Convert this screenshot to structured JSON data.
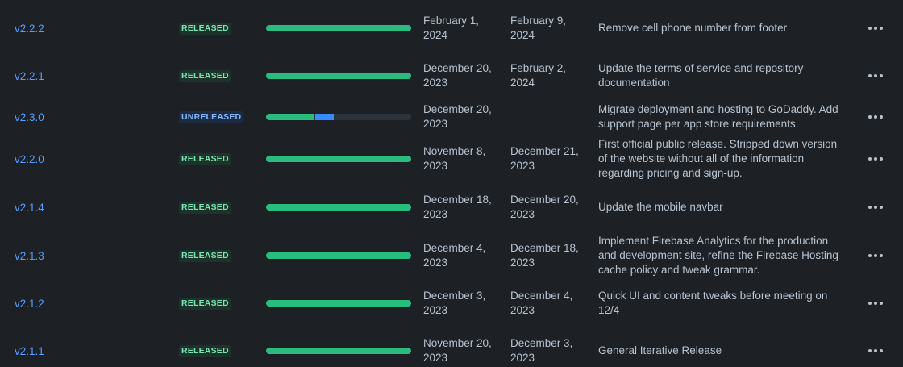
{
  "rows": [
    {
      "version": "v2.2.2",
      "status": "RELEASED",
      "start_date": "February 1, 2024",
      "release_date": "February 9, 2024",
      "description": "Remove cell phone number from footer",
      "progress": {
        "done": 1.0,
        "in_progress": 0.0
      }
    },
    {
      "version": "v2.2.1",
      "status": "RELEASED",
      "start_date": "December 20, 2023",
      "release_date": "February 2, 2024",
      "description": "Update the terms of service and repository documentation",
      "progress": {
        "done": 1.0,
        "in_progress": 0.0
      }
    },
    {
      "version": "v2.3.0",
      "status": "UNRELEASED",
      "start_date": "December 20, 2023",
      "release_date": "",
      "description": "Migrate deployment and hosting to GoDaddy. Add support page per app store requirements.",
      "progress": {
        "done": 0.33,
        "in_progress": 0.13
      }
    },
    {
      "version": "v2.2.0",
      "status": "RELEASED",
      "start_date": "November 8, 2023",
      "release_date": "December 21, 2023",
      "description": "First official public release. Stripped down version of the website without all of the information regarding pricing and sign-up.",
      "progress": {
        "done": 1.0,
        "in_progress": 0.0
      }
    },
    {
      "version": "v2.1.4",
      "status": "RELEASED",
      "start_date": "December 18, 2023",
      "release_date": "December 20, 2023",
      "description": "Update the mobile navbar",
      "progress": {
        "done": 1.0,
        "in_progress": 0.0
      }
    },
    {
      "version": "v2.1.3",
      "status": "RELEASED",
      "start_date": "December 4, 2023",
      "release_date": "December 18, 2023",
      "description": "Implement Firebase Analytics for the production and development site, refine the Firebase Hosting cache policy and tweak grammar.",
      "progress": {
        "done": 1.0,
        "in_progress": 0.0
      }
    },
    {
      "version": "v2.1.2",
      "status": "RELEASED",
      "start_date": "December 3, 2023",
      "release_date": "December 4, 2023",
      "description": "Quick UI and content tweaks before meeting on 12/4",
      "progress": {
        "done": 1.0,
        "in_progress": 0.0
      }
    },
    {
      "version": "v2.1.1",
      "status": "RELEASED",
      "start_date": "November 20, 2023",
      "release_date": "December 3, 2023",
      "description": "General Iterative Release",
      "progress": {
        "done": 1.0,
        "in_progress": 0.0
      }
    }
  ],
  "icons": {
    "more_actions": "more-horizontal-icon"
  },
  "colors": {
    "background": "#1d2125",
    "link": "#579dff",
    "done": "#2abb7f",
    "in_progress": "#388bff",
    "track": "#2c333a"
  }
}
